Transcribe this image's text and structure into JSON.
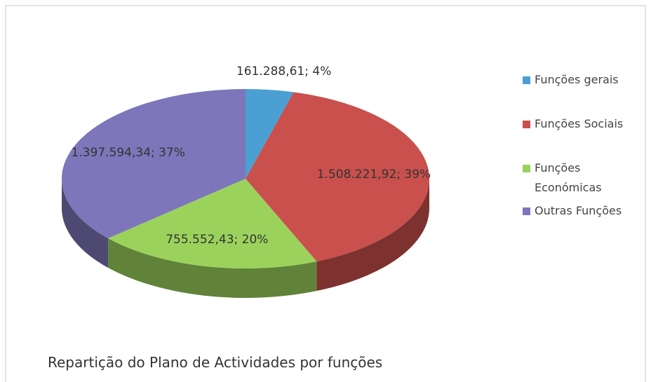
{
  "chart_data": {
    "type": "pie3d",
    "title": "Repartição do Plano de Actividades por funções",
    "categories": [
      "Funções gerais",
      "Funções Sociais",
      "Funções Económicas",
      "Outras Funções"
    ],
    "values": [
      161288.61,
      1508221.92,
      755552.43,
      1397594.34
    ],
    "value_labels": [
      "161.288,61; 4%",
      "1.508.221,92; 39%",
      "755.552,43; 20%",
      "1.397.594,34; 37%"
    ],
    "colors": [
      "#4a9fd3",
      "#c9504d",
      "#9bd25c",
      "#7d76ba"
    ],
    "legend": "right"
  }
}
